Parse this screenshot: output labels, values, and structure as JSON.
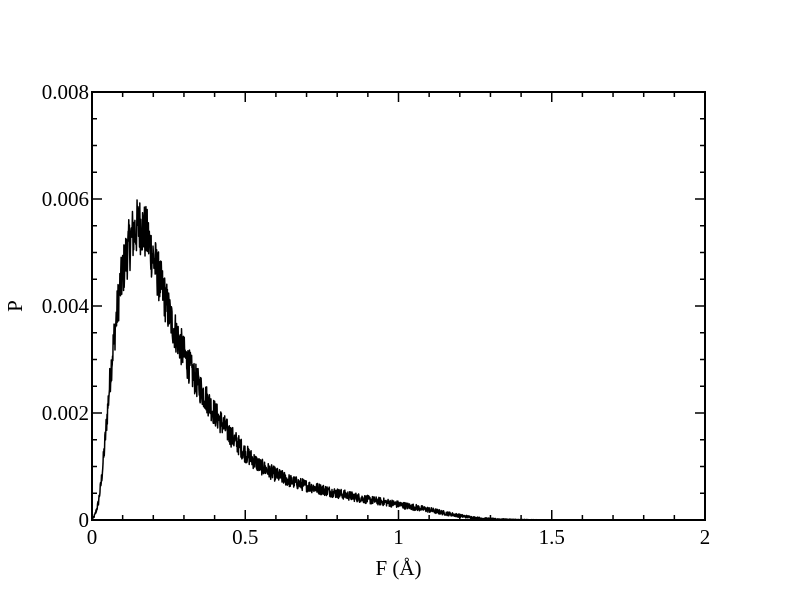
{
  "chart_data": {
    "type": "line",
    "title": "",
    "xlabel": "F (Å)",
    "ylabel": "P",
    "xlim": [
      0,
      2
    ],
    "ylim": [
      0,
      0.008
    ],
    "x_ticks": [
      "0",
      "0.5",
      "1",
      "1.5",
      "2"
    ],
    "y_ticks": [
      "0",
      "0.002",
      "0.004",
      "0.006",
      "0.008"
    ],
    "grid": false,
    "legend": "none",
    "line_color": "#000000",
    "series": [
      {
        "x": [
          0.0,
          0.01,
          0.02,
          0.03,
          0.04,
          0.05,
          0.06,
          0.07,
          0.08,
          0.09,
          0.1,
          0.11,
          0.12,
          0.13,
          0.14,
          0.15,
          0.16,
          0.17,
          0.18,
          0.19,
          0.2,
          0.22,
          0.24,
          0.26,
          0.28,
          0.3,
          0.33,
          0.36,
          0.4,
          0.45,
          0.5,
          0.55,
          0.6,
          0.65,
          0.7,
          0.75,
          0.8,
          0.85,
          0.9,
          0.95,
          1.0,
          1.05,
          1.1,
          1.15,
          1.2,
          1.25,
          1.3,
          1.35,
          1.4,
          1.45,
          1.5,
          1.6,
          1.7,
          1.8,
          2.0
        ],
        "values": [
          0.0,
          0.0001,
          0.0003,
          0.0007,
          0.0013,
          0.002,
          0.0027,
          0.0033,
          0.0038,
          0.0043,
          0.0046,
          0.0049,
          0.0051,
          0.0053,
          0.0054,
          0.0055,
          0.0055,
          0.0054,
          0.0053,
          0.0051,
          0.0049,
          0.0045,
          0.0041,
          0.0037,
          0.0034,
          0.0031,
          0.0027,
          0.0024,
          0.002,
          0.0016,
          0.00125,
          0.001,
          0.00085,
          0.00072,
          0.00064,
          0.00057,
          0.0005,
          0.00044,
          0.00038,
          0.00034,
          0.00029,
          0.00024,
          0.00019,
          0.00013,
          8e-05,
          4e-05,
          2e-05,
          1e-05,
          5e-06,
          2e-06,
          1e-06,
          0.0,
          0.0,
          0.0,
          0.0
        ]
      }
    ]
  }
}
